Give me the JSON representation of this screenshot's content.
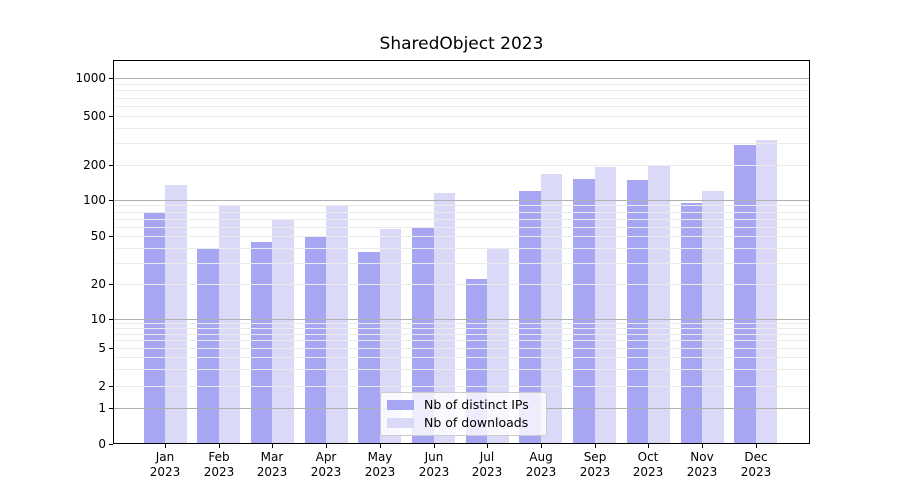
{
  "chart_data": {
    "type": "bar",
    "title": "SharedObject 2023",
    "categories": [
      {
        "month": "Jan",
        "year": "2023"
      },
      {
        "month": "Feb",
        "year": "2023"
      },
      {
        "month": "Mar",
        "year": "2023"
      },
      {
        "month": "Apr",
        "year": "2023"
      },
      {
        "month": "May",
        "year": "2023"
      },
      {
        "month": "Jun",
        "year": "2023"
      },
      {
        "month": "Jul",
        "year": "2023"
      },
      {
        "month": "Aug",
        "year": "2023"
      },
      {
        "month": "Sep",
        "year": "2023"
      },
      {
        "month": "Oct",
        "year": "2023"
      },
      {
        "month": "Nov",
        "year": "2023"
      },
      {
        "month": "Dec",
        "year": "2023"
      }
    ],
    "series": [
      {
        "name": "Nb of distinct IPs",
        "color": "#a6a6f2",
        "values": [
          80,
          39,
          45,
          50,
          37,
          60,
          22,
          120,
          152,
          148,
          95,
          290
        ]
      },
      {
        "name": "Nb of downloads",
        "color": "#dadaf8",
        "values": [
          135,
          89,
          69,
          91,
          57,
          114,
          40,
          167,
          192,
          200,
          120,
          320
        ]
      }
    ],
    "y_axis": {
      "scale": "symlog",
      "tick_values": [
        0,
        1,
        2,
        5,
        10,
        20,
        50,
        100,
        200,
        500,
        1000
      ],
      "tick_labels": [
        "0",
        "1",
        "2",
        "5",
        "10",
        "20",
        "50",
        "100",
        "200",
        "500",
        "1000"
      ],
      "ylim": [
        0,
        1400
      ]
    },
    "xlabel": "",
    "ylabel": "",
    "grid": true,
    "legend": {
      "position": "lower center",
      "items": [
        "Nb of distinct IPs",
        "Nb of downloads"
      ]
    }
  },
  "colors": {
    "bar_distinct_ips": "#a6a6f2",
    "bar_downloads": "#dadaf8",
    "grid_major": "#b0b0b0",
    "grid_minor": "#ebebeb",
    "axis": "#000000",
    "legend_border": "#cccccc",
    "background": "#ffffff"
  }
}
